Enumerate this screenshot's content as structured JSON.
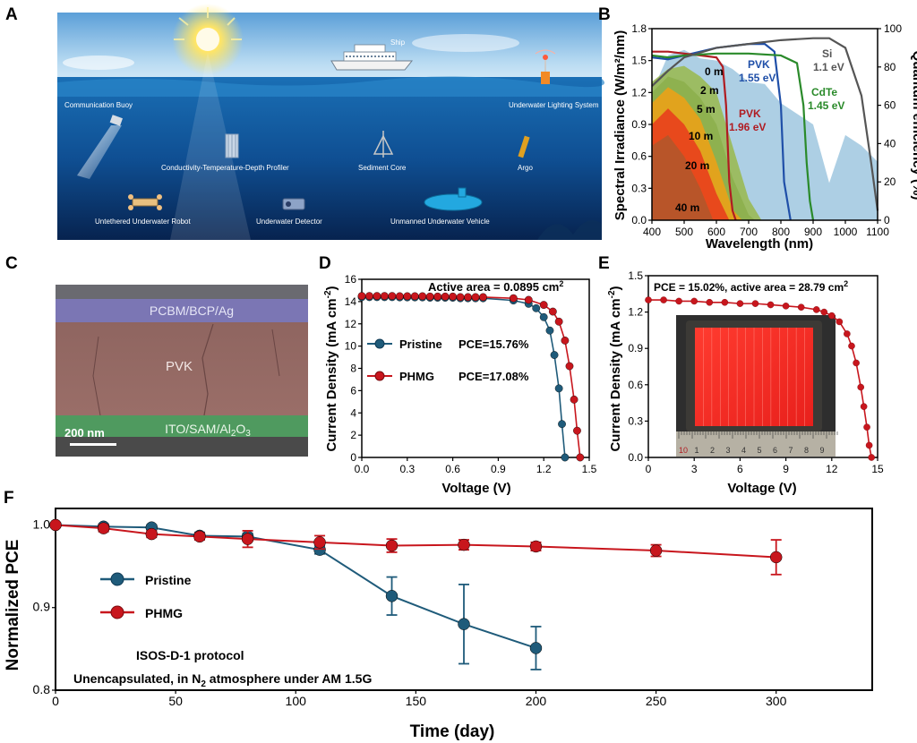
{
  "panels": {
    "A": {
      "label": "A",
      "annotations": [
        {
          "id": "ship",
          "text": "Ship"
        },
        {
          "id": "lighting",
          "text": "Underwater Lighting System"
        },
        {
          "id": "buoy",
          "text": "Communication Buoy"
        },
        {
          "id": "ctd",
          "text": "Conductivity-Temperature-Depth Profiler"
        },
        {
          "id": "sediment",
          "text": "Sediment Core"
        },
        {
          "id": "argo",
          "text": "Argo"
        },
        {
          "id": "robot",
          "text": "Untethered Underwater Robot"
        },
        {
          "id": "detector",
          "text": "Underwater Detector"
        },
        {
          "id": "uuv",
          "text": "Unmanned Underwater Vehicle"
        }
      ]
    },
    "B": {
      "label": "B",
      "xlabel": "Wavelength (nm)",
      "ylabel": "Spectral Irradiance (W/m²/nm)",
      "y2label": "Quantum efficiency (%)",
      "depth_labels": [
        "0 m",
        "2 m",
        "5 m",
        "10 m",
        "20 m",
        "40 m"
      ],
      "material_labels": [
        {
          "name": "PVK",
          "value": "1.55 eV",
          "color": "#1f4fa8"
        },
        {
          "name": "PVK",
          "value": "1.96 eV",
          "color": "#b01c22"
        },
        {
          "name": "CdTe",
          "value": "1.45 eV",
          "color": "#2a8a2a"
        },
        {
          "name": "Si",
          "value": "1.1 eV",
          "color": "#555555"
        }
      ]
    },
    "C": {
      "label": "C",
      "layers": {
        "top": "PCBM/BCP/Ag",
        "middle": "PVK",
        "bottom": "ITO/SAM/Al"
      },
      "bottom_sub": "2",
      "bottom_end": "O",
      "bottom_sub2": "3",
      "scale_bar": "200 nm"
    },
    "D": {
      "label": "D",
      "xlabel": "Voltage (V)",
      "ylabel": "Current Density (mA cm",
      "ylabel_sup": "-2",
      "ylabel_end": ")",
      "note": "Active area = 0.0895 cm",
      "note_sup": "2",
      "legend": [
        {
          "name": "Pristine",
          "pce": "PCE=15.76%"
        },
        {
          "name": "PHMG",
          "pce": "PCE=17.08%"
        }
      ]
    },
    "E": {
      "label": "E",
      "xlabel": "Voltage (V)",
      "ylabel": "Current Density (mA cm",
      "ylabel_sup": "-2",
      "ylabel_end": ")",
      "note": "PCE = 15.02%, active area = 28.79 cm",
      "note_sup": "2",
      "ruler_digits": [
        "10",
        "1",
        "2",
        "3",
        "4",
        "5",
        "6",
        "7",
        "8",
        "9"
      ]
    },
    "F": {
      "label": "F",
      "xlabel": "Time (day)",
      "ylabel": "Normalized PCE",
      "legend": [
        "Pristine",
        "PHMG"
      ],
      "protocol": "ISOS-D-1 protocol",
      "condition_a": "Unencapsulated, in N",
      "condition_sub": "2",
      "condition_b": " atmosphere under AM 1.5G"
    }
  },
  "colors": {
    "pristine": "#1f5b7a",
    "phmg": "#c8161d",
    "pvk155": "#1f4fa8",
    "pvk196": "#b01c22",
    "cdte": "#2a8a2a",
    "si": "#555555",
    "solar": "#a9cce3"
  },
  "chart_data": [
    {
      "panel": "B",
      "type": "area",
      "xlabel": "Wavelength (nm)",
      "ylabel": "Spectral Irradiance (W/m²/nm)",
      "y2label": "Quantum efficiency (%)",
      "xlim": [
        400,
        1100
      ],
      "ylim": [
        0,
        1.8
      ],
      "y2lim": [
        0,
        100
      ],
      "xticks": [
        400,
        500,
        600,
        700,
        800,
        900,
        1000,
        1100
      ],
      "yticks": [
        0.0,
        0.3,
        0.6,
        0.9,
        1.2,
        1.5,
        1.8
      ],
      "y2ticks": [
        0,
        20,
        40,
        60,
        80,
        100
      ],
      "series": [
        {
          "name": "0 m",
          "color": "#a9cce3",
          "x": [
            400,
            450,
            500,
            550,
            600,
            650,
            700,
            750,
            800,
            850,
            900,
            950,
            1000,
            1050,
            1100
          ],
          "y": [
            1.2,
            1.55,
            1.6,
            1.52,
            1.5,
            1.42,
            1.3,
            1.28,
            1.1,
            1.0,
            0.9,
            0.35,
            0.8,
            0.7,
            0.55
          ]
        },
        {
          "name": "2 m",
          "color": "#9bbb5c",
          "x": [
            400,
            450,
            500,
            550,
            600,
            650,
            700,
            740
          ],
          "y": [
            1.3,
            1.42,
            1.45,
            1.35,
            1.2,
            0.7,
            0.2,
            0.0
          ]
        },
        {
          "name": "5 m",
          "color": "#8db04e",
          "x": [
            400,
            450,
            500,
            550,
            600,
            650,
            700,
            720
          ],
          "y": [
            1.2,
            1.35,
            1.3,
            1.15,
            0.9,
            0.4,
            0.05,
            0.0
          ]
        },
        {
          "name": "10 m",
          "color": "#e6a21a",
          "x": [
            400,
            450,
            500,
            550,
            600,
            650,
            680
          ],
          "y": [
            1.1,
            1.25,
            1.15,
            0.95,
            0.55,
            0.1,
            0.0
          ]
        },
        {
          "name": "20 m",
          "color": "#e8451c",
          "x": [
            400,
            450,
            500,
            550,
            600,
            640
          ],
          "y": [
            0.9,
            1.05,
            0.9,
            0.65,
            0.25,
            0.0
          ]
        },
        {
          "name": "40 m",
          "color": "#b5562a",
          "x": [
            400,
            450,
            500,
            550,
            590
          ],
          "y": [
            0.7,
            0.8,
            0.6,
            0.3,
            0.0
          ]
        }
      ],
      "qe_curves": [
        {
          "name": "PVK 1.55 eV",
          "color": "#1f4fa8",
          "x": [
            400,
            450,
            500,
            550,
            600,
            650,
            700,
            750,
            780,
            800,
            810,
            830
          ],
          "y": [
            85,
            84,
            86,
            88,
            90,
            91,
            92,
            92,
            88,
            60,
            20,
            0
          ]
        },
        {
          "name": "PVK 1.96 eV",
          "color": "#b01c22",
          "x": [
            400,
            450,
            500,
            550,
            600,
            620,
            630,
            640,
            650,
            660
          ],
          "y": [
            88,
            88,
            87,
            86,
            85,
            80,
            60,
            20,
            5,
            0
          ]
        },
        {
          "name": "CdTe 1.45 eV",
          "color": "#2a8a2a",
          "x": [
            400,
            450,
            500,
            600,
            700,
            800,
            850,
            870,
            880,
            890,
            900
          ],
          "y": [
            86,
            85,
            86,
            87,
            87,
            86,
            82,
            60,
            30,
            10,
            0
          ]
        },
        {
          "name": "Si 1.1 eV",
          "color": "#555555",
          "x": [
            400,
            450,
            500,
            600,
            700,
            800,
            900,
            950,
            1000,
            1050,
            1080,
            1100
          ],
          "y": [
            70,
            78,
            85,
            90,
            92,
            94,
            95,
            95,
            90,
            65,
            30,
            5
          ]
        }
      ]
    },
    {
      "panel": "D",
      "type": "line",
      "xlabel": "Voltage (V)",
      "ylabel": "Current Density (mA cm-2)",
      "xlim": [
        0.0,
        1.5
      ],
      "ylim": [
        0,
        16
      ],
      "xticks": [
        0.0,
        0.3,
        0.6,
        0.9,
        1.2,
        1.5
      ],
      "yticks": [
        0,
        2,
        4,
        6,
        8,
        10,
        12,
        14,
        16
      ],
      "series": [
        {
          "name": "Pristine",
          "pce": "PCE=15.76%",
          "color": "#1f5b7a",
          "x": [
            0.0,
            0.2,
            0.4,
            0.6,
            0.8,
            1.0,
            1.1,
            1.15,
            1.2,
            1.24,
            1.27,
            1.3,
            1.32,
            1.34
          ],
          "y": [
            14.4,
            14.4,
            14.38,
            14.35,
            14.3,
            14.1,
            13.8,
            13.4,
            12.6,
            11.4,
            9.2,
            6.2,
            3.0,
            0.0
          ]
        },
        {
          "name": "PHMG",
          "pce": "PCE=17.08%",
          "color": "#c8161d",
          "x": [
            0.0,
            0.2,
            0.4,
            0.6,
            0.8,
            1.0,
            1.1,
            1.2,
            1.26,
            1.3,
            1.34,
            1.37,
            1.4,
            1.42,
            1.44
          ],
          "y": [
            14.5,
            14.5,
            14.48,
            14.45,
            14.4,
            14.3,
            14.15,
            13.7,
            13.1,
            12.2,
            10.5,
            8.2,
            5.2,
            2.4,
            0.0
          ]
        }
      ]
    },
    {
      "panel": "E",
      "type": "line",
      "xlabel": "Voltage (V)",
      "ylabel": "Current Density (mA cm-2)",
      "xlim": [
        0,
        15
      ],
      "ylim": [
        0,
        1.5
      ],
      "xticks": [
        0,
        3,
        6,
        9,
        12,
        15
      ],
      "yticks": [
        0.0,
        0.3,
        0.6,
        0.9,
        1.2,
        1.5
      ],
      "series": [
        {
          "name": "PCE = 15.02%",
          "color": "#c8161d",
          "x": [
            0,
            1,
            2,
            3,
            4,
            5,
            6,
            7,
            8,
            9,
            10,
            11,
            11.5,
            12,
            12.5,
            13,
            13.3,
            13.6,
            13.9,
            14.1,
            14.3,
            14.45,
            14.6
          ],
          "y": [
            1.3,
            1.3,
            1.29,
            1.29,
            1.28,
            1.28,
            1.27,
            1.27,
            1.26,
            1.25,
            1.24,
            1.22,
            1.2,
            1.17,
            1.12,
            1.02,
            0.92,
            0.78,
            0.58,
            0.42,
            0.25,
            0.1,
            0.0
          ]
        }
      ]
    },
    {
      "panel": "F",
      "type": "line",
      "xlabel": "Time (day)",
      "ylabel": "Normalized PCE",
      "xlim": [
        0,
        340
      ],
      "ylim": [
        0.8,
        1.02
      ],
      "xticks": [
        0,
        50,
        100,
        150,
        200,
        250,
        300
      ],
      "yticks": [
        0.8,
        0.9,
        1.0
      ],
      "series": [
        {
          "name": "Pristine",
          "color": "#1f5b7a",
          "x": [
            0,
            20,
            40,
            60,
            80,
            110,
            140,
            170,
            200
          ],
          "y": [
            1.0,
            0.998,
            0.997,
            0.987,
            0.986,
            0.97,
            0.914,
            0.88,
            0.851
          ],
          "err": [
            0.002,
            0.003,
            0.003,
            0.004,
            0.004,
            0.005,
            0.023,
            0.048,
            0.026
          ]
        },
        {
          "name": "PHMG",
          "color": "#c8161d",
          "x": [
            0,
            20,
            40,
            60,
            80,
            110,
            140,
            170,
            200,
            250,
            300
          ],
          "y": [
            1.0,
            0.996,
            0.989,
            0.986,
            0.983,
            0.979,
            0.975,
            0.976,
            0.974,
            0.969,
            0.961
          ],
          "err": [
            0.002,
            0.004,
            0.004,
            0.004,
            0.01,
            0.008,
            0.008,
            0.006,
            0.005,
            0.007,
            0.021
          ]
        }
      ]
    }
  ]
}
